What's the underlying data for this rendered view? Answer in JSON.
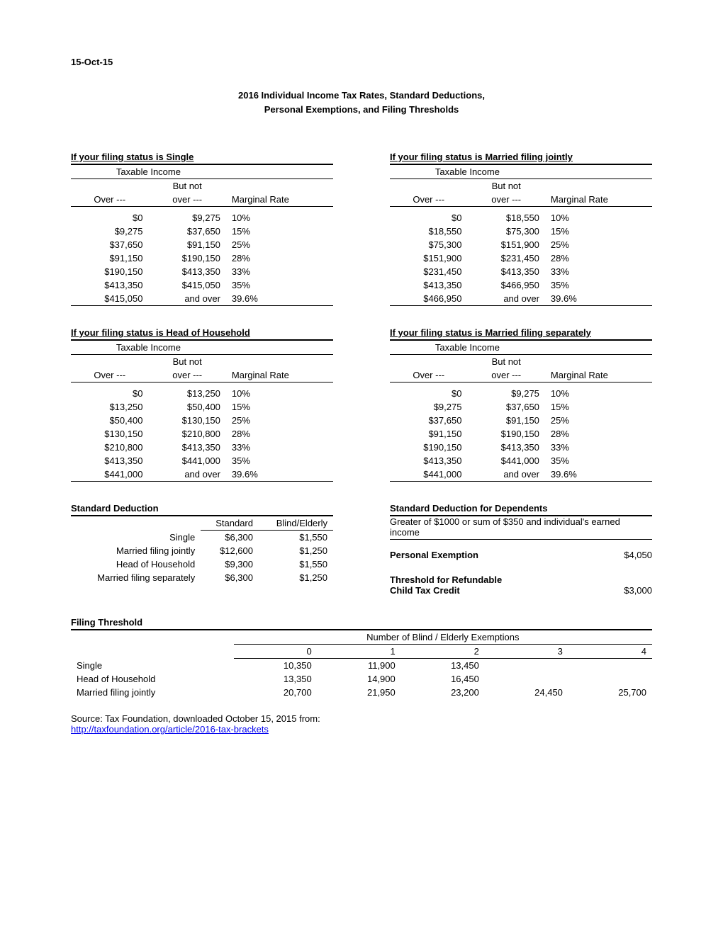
{
  "date": "15-Oct-15",
  "title_line1": "2016 Individual Income Tax Rates, Standard Deductions,",
  "title_line2": "Personal Exemptions, and Filing Thresholds",
  "labels": {
    "taxable_income": "Taxable Income",
    "but_not": "But not",
    "over": "Over ---",
    "over2": "over ---",
    "marginal_rate": "Marginal Rate"
  },
  "tables": {
    "single": {
      "title": "If your filing status is Single",
      "rows": [
        [
          "$0",
          "$9,275",
          "10%"
        ],
        [
          "$9,275",
          "$37,650",
          "15%"
        ],
        [
          "$37,650",
          "$91,150",
          "25%"
        ],
        [
          "$91,150",
          "$190,150",
          "28%"
        ],
        [
          "$190,150",
          "$413,350",
          "33%"
        ],
        [
          "$413,350",
          "$415,050",
          "35%"
        ],
        [
          "$415,050",
          "and over",
          "39.6%"
        ]
      ]
    },
    "mfj": {
      "title": "If your filing status is Married filing jointly",
      "rows": [
        [
          "$0",
          "$18,550",
          "10%"
        ],
        [
          "$18,550",
          "$75,300",
          "15%"
        ],
        [
          "$75,300",
          "$151,900",
          "25%"
        ],
        [
          "$151,900",
          "$231,450",
          "28%"
        ],
        [
          "$231,450",
          "$413,350",
          "33%"
        ],
        [
          "$413,350",
          "$466,950",
          "35%"
        ],
        [
          "$466,950",
          "and over",
          "39.6%"
        ]
      ]
    },
    "hoh": {
      "title": "If your filing status is Head of Household",
      "rows": [
        [
          "$0",
          "$13,250",
          "10%"
        ],
        [
          "$13,250",
          "$50,400",
          "15%"
        ],
        [
          "$50,400",
          "$130,150",
          "25%"
        ],
        [
          "$130,150",
          "$210,800",
          "28%"
        ],
        [
          "$210,800",
          "$413,350",
          "33%"
        ],
        [
          "$413,350",
          "$441,000",
          "35%"
        ],
        [
          "$441,000",
          "and over",
          "39.6%"
        ]
      ]
    },
    "mfs": {
      "title": "If your filing status is Married filing separately",
      "rows": [
        [
          "$0",
          "$9,275",
          "10%"
        ],
        [
          "$9,275",
          "$37,650",
          "15%"
        ],
        [
          "$37,650",
          "$91,150",
          "25%"
        ],
        [
          "$91,150",
          "$190,150",
          "28%"
        ],
        [
          "$190,150",
          "$413,350",
          "33%"
        ],
        [
          "$413,350",
          "$441,000",
          "35%"
        ],
        [
          "$441,000",
          "and over",
          "39.6%"
        ]
      ]
    }
  },
  "standard_deduction": {
    "title": "Standard Deduction",
    "col_standard": "Standard",
    "col_blind": "Blind/Elderly",
    "rows": [
      [
        "Single",
        "$6,300",
        "$1,550"
      ],
      [
        "Married filing jointly",
        "$12,600",
        "$1,250"
      ],
      [
        "Head of Household",
        "$9,300",
        "$1,550"
      ],
      [
        "Married filing separately",
        "$6,300",
        "$1,250"
      ]
    ]
  },
  "sd_dependents": {
    "title": "Standard Deduction for Dependents",
    "text": "Greater of $1000 or sum of $350 and individual's earned income"
  },
  "personal_exemption": {
    "label": "Personal Exemption",
    "value": "$4,050"
  },
  "ctc": {
    "label1": "Threshold for Refundable",
    "label2": "Child Tax Credit",
    "value": "$3,000"
  },
  "filing_threshold": {
    "title": "Filing Threshold",
    "group_label": "Number of Blind / Elderly Exemptions",
    "cols": [
      "0",
      "1",
      "2",
      "3",
      "4"
    ],
    "rows": [
      [
        "Single",
        "10,350",
        "11,900",
        "13,450",
        "",
        ""
      ],
      [
        "Head of Household",
        "13,350",
        "14,900",
        "16,450",
        "",
        ""
      ],
      [
        "Married filing jointly",
        "20,700",
        "21,950",
        "23,200",
        "24,450",
        "25,700"
      ]
    ]
  },
  "source": {
    "text": "Source: Tax Foundation, downloaded October 15, 2015 from:",
    "url": "http://taxfoundation.org/article/2016-tax-brackets"
  }
}
